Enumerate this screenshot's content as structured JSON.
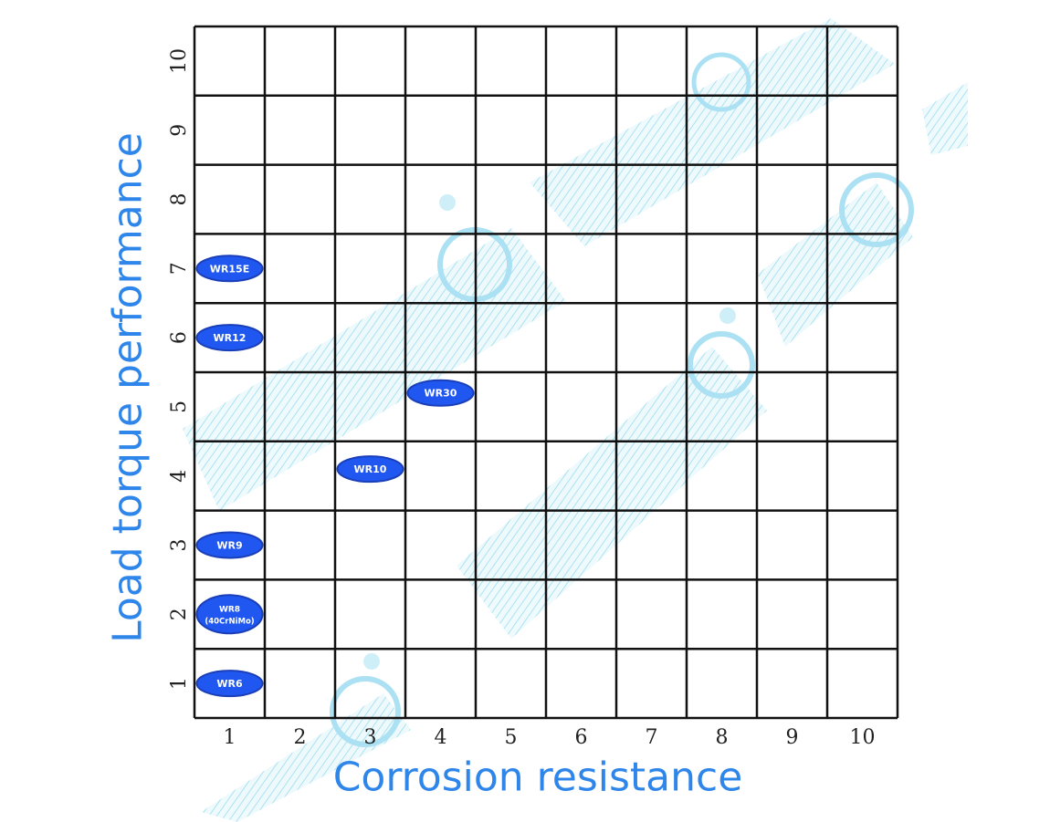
{
  "chart_data": {
    "type": "scatter",
    "xlabel": "Corrosion resistance",
    "ylabel": "Load torque performance",
    "x_ticks": [
      "1",
      "2",
      "3",
      "4",
      "5",
      "6",
      "7",
      "8",
      "9",
      "10"
    ],
    "y_ticks": [
      "1",
      "2",
      "3",
      "4",
      "5",
      "6",
      "7",
      "8",
      "9",
      "10"
    ],
    "xlim": [
      0.5,
      10.5
    ],
    "ylim": [
      0.5,
      10.5
    ],
    "grid": true,
    "points": [
      {
        "label": "WR15E",
        "x": 1,
        "y": 7
      },
      {
        "label": "WR12",
        "x": 1,
        "y": 6
      },
      {
        "label": "WR30",
        "x": 4,
        "y": 5.2
      },
      {
        "label": "WR10",
        "x": 3,
        "y": 4.1
      },
      {
        "label": "WR9",
        "x": 1,
        "y": 3
      },
      {
        "label": "WR8",
        "sublabel": "(40CrNiMo)",
        "x": 1,
        "y": 2
      },
      {
        "label": "WR6",
        "x": 1,
        "y": 1
      }
    ],
    "colors": {
      "marker_fill": "#1f57f0",
      "marker_stroke": "#1a3fb8",
      "marker_text": "#ffffff",
      "grid": "#111111",
      "axis_label": "#2f86ea",
      "background_art": "#7fd3ec"
    }
  }
}
